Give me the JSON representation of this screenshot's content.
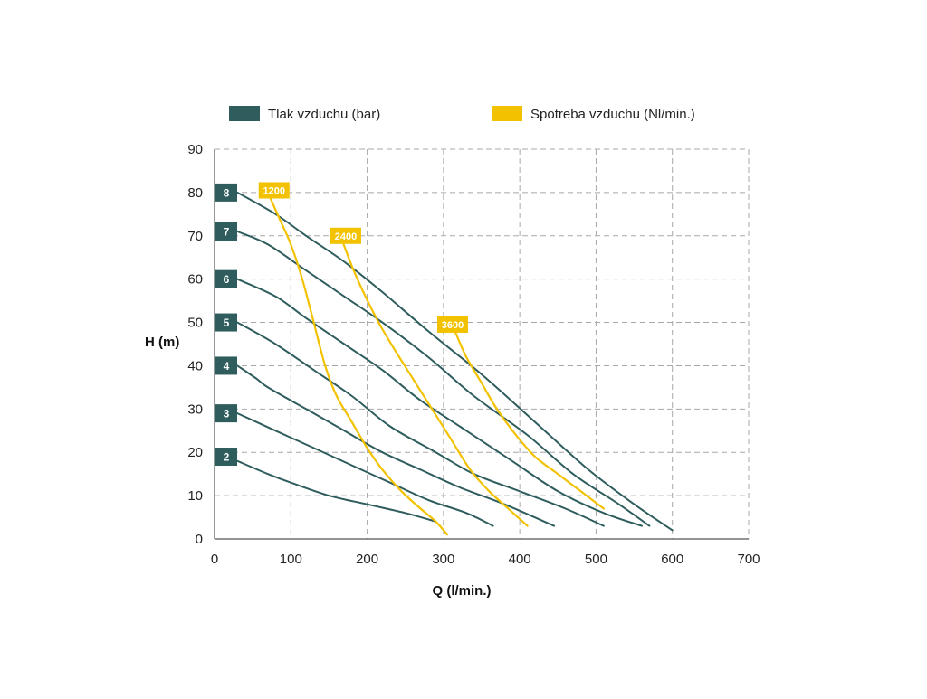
{
  "chart_data": {
    "type": "line",
    "xlabel": "Q (l/min.)",
    "ylabel": "H (m)",
    "xlim": [
      0,
      700
    ],
    "ylim": [
      0,
      90
    ],
    "x_ticks": [
      0,
      100,
      200,
      300,
      400,
      500,
      600,
      700
    ],
    "y_ticks": [
      0,
      10,
      20,
      30,
      40,
      50,
      60,
      70,
      80,
      90
    ],
    "grid": true,
    "legend_placement": "top",
    "legend": [
      {
        "label": "Tlak vzduchu (bar)",
        "color": "#2f5d5d"
      },
      {
        "label": "Spotreba vzduchu (Nl/min.)",
        "color": "#f2c200"
      }
    ],
    "pressure_curves": [
      {
        "name": "8",
        "color": "#2f5d5d",
        "points": [
          [
            30,
            80
          ],
          [
            80,
            75
          ],
          [
            120,
            70
          ],
          [
            170,
            64
          ],
          [
            220,
            57
          ],
          [
            280,
            48
          ],
          [
            350,
            38
          ],
          [
            420,
            27
          ],
          [
            490,
            16
          ],
          [
            550,
            8
          ],
          [
            600,
            2
          ]
        ]
      },
      {
        "name": "7",
        "color": "#2f5d5d",
        "points": [
          [
            30,
            71
          ],
          [
            70,
            68
          ],
          [
            120,
            62
          ],
          [
            170,
            56
          ],
          [
            220,
            50
          ],
          [
            280,
            42
          ],
          [
            340,
            33
          ],
          [
            410,
            24
          ],
          [
            470,
            15
          ],
          [
            530,
            8
          ],
          [
            570,
            3
          ]
        ]
      },
      {
        "name": "6",
        "color": "#2f5d5d",
        "points": [
          [
            30,
            60
          ],
          [
            80,
            56
          ],
          [
            120,
            51
          ],
          [
            170,
            45
          ],
          [
            220,
            39
          ],
          [
            270,
            32
          ],
          [
            330,
            25
          ],
          [
            390,
            18
          ],
          [
            450,
            11
          ],
          [
            510,
            6
          ],
          [
            560,
            3
          ]
        ]
      },
      {
        "name": "5",
        "color": "#2f5d5d",
        "points": [
          [
            30,
            50
          ],
          [
            80,
            45
          ],
          [
            130,
            39
          ],
          [
            180,
            33
          ],
          [
            230,
            26
          ],
          [
            290,
            20
          ],
          [
            340,
            15
          ],
          [
            400,
            11
          ],
          [
            460,
            7
          ],
          [
            510,
            3
          ]
        ]
      },
      {
        "name": "4",
        "color": "#2f5d5d",
        "points": [
          [
            30,
            40
          ],
          [
            55,
            37
          ],
          [
            70,
            35
          ],
          [
            120,
            30
          ],
          [
            170,
            25
          ],
          [
            220,
            20
          ],
          [
            270,
            16
          ],
          [
            320,
            12
          ],
          [
            380,
            8
          ],
          [
            445,
            3
          ]
        ]
      },
      {
        "name": "3",
        "color": "#2f5d5d",
        "points": [
          [
            30,
            29
          ],
          [
            80,
            25
          ],
          [
            130,
            21
          ],
          [
            180,
            17
          ],
          [
            230,
            13
          ],
          [
            280,
            9
          ],
          [
            330,
            6
          ],
          [
            365,
            3
          ]
        ]
      },
      {
        "name": "2",
        "color": "#2f5d5d",
        "points": [
          [
            30,
            18
          ],
          [
            70,
            15
          ],
          [
            100,
            13
          ],
          [
            150,
            10
          ],
          [
            200,
            8
          ],
          [
            250,
            6
          ],
          [
            290,
            4
          ]
        ]
      }
    ],
    "consumption_curves": [
      {
        "name": "1200",
        "color": "#f2c200",
        "points": [
          [
            70,
            80
          ],
          [
            85,
            74
          ],
          [
            100,
            68
          ],
          [
            115,
            60
          ],
          [
            130,
            50
          ],
          [
            145,
            40
          ],
          [
            160,
            33
          ],
          [
            180,
            27
          ],
          [
            200,
            21
          ],
          [
            220,
            16
          ],
          [
            245,
            11
          ],
          [
            270,
            7
          ],
          [
            290,
            4
          ],
          [
            305,
            1
          ]
        ]
      },
      {
        "name": "2400",
        "color": "#f2c200",
        "points": [
          [
            165,
            70
          ],
          [
            180,
            63
          ],
          [
            195,
            57
          ],
          [
            215,
            50
          ],
          [
            235,
            44
          ],
          [
            260,
            37
          ],
          [
            285,
            30
          ],
          [
            310,
            23
          ],
          [
            335,
            16
          ],
          [
            360,
            11
          ],
          [
            385,
            7
          ],
          [
            410,
            3
          ]
        ]
      },
      {
        "name": "3600",
        "color": "#f2c200",
        "points": [
          [
            315,
            48
          ],
          [
            330,
            42
          ],
          [
            350,
            36
          ],
          [
            370,
            30
          ],
          [
            395,
            24
          ],
          [
            420,
            19
          ],
          [
            450,
            15
          ],
          [
            480,
            11
          ],
          [
            510,
            7
          ]
        ]
      }
    ],
    "pressure_labels": [
      {
        "text": "8",
        "y": 80
      },
      {
        "text": "7",
        "y": 71
      },
      {
        "text": "6",
        "y": 60
      },
      {
        "text": "5",
        "y": 50
      },
      {
        "text": "4",
        "y": 40
      },
      {
        "text": "3",
        "y": 29
      },
      {
        "text": "2",
        "y": 19
      }
    ],
    "consumption_labels": [
      {
        "text": "1200",
        "x": 78,
        "y": 80.5
      },
      {
        "text": "2400",
        "x": 172,
        "y": 70
      },
      {
        "text": "3600",
        "x": 312,
        "y": 49.5
      }
    ]
  }
}
